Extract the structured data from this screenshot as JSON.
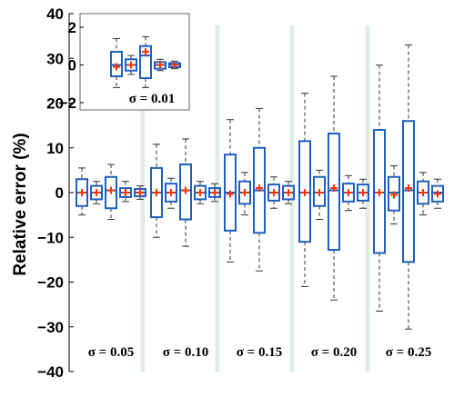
{
  "chart_data": [
    {
      "type": "boxplot",
      "ylabel": "Relative error (%)",
      "ylim": [
        -40,
        40
      ],
      "yticks": [
        "40",
        "30",
        "20",
        "10",
        "0",
        "−10",
        "−20",
        "−30",
        "−40"
      ],
      "ytick_values": [
        40,
        30,
        20,
        10,
        0,
        -10,
        -20,
        -30,
        -40
      ],
      "separator_color": "#dfeee4",
      "box_color": "#1f5fbf",
      "mean_color": "#ff3300",
      "whisker_style": "dashed",
      "groups": [
        {
          "label": "σ = 0.05",
          "boxes": [
            {
              "wl": -5.0,
              "q1": -3.0,
              "med": 0.0,
              "q3": 3.0,
              "wh": 5.5,
              "mean": 0.0
            },
            {
              "wl": -2.5,
              "q1": -1.5,
              "med": 0.0,
              "q3": 1.5,
              "wh": 2.5,
              "mean": 0.0
            },
            {
              "wl": -6.0,
              "q1": -3.5,
              "med": 0.5,
              "q3": 3.5,
              "wh": 6.3,
              "mean": 0.5
            },
            {
              "wl": -2.0,
              "q1": -1.0,
              "med": 0.0,
              "q3": 1.0,
              "wh": 2.5,
              "mean": 0.0
            },
            {
              "wl": -1.5,
              "q1": -0.8,
              "med": 0.0,
              "q3": 0.8,
              "wh": 1.5,
              "mean": 0.0
            }
          ]
        },
        {
          "label": "σ = 0.10",
          "boxes": [
            {
              "wl": -10.0,
              "q1": -5.5,
              "med": 0.0,
              "q3": 5.5,
              "wh": 10.8,
              "mean": 0.0
            },
            {
              "wl": -3.5,
              "q1": -2.0,
              "med": 0.0,
              "q3": 2.0,
              "wh": 3.2,
              "mean": 0.0
            },
            {
              "wl": -12.0,
              "q1": -6.0,
              "med": 0.5,
              "q3": 6.3,
              "wh": 12.0,
              "mean": 0.5
            },
            {
              "wl": -2.5,
              "q1": -1.5,
              "med": 0.0,
              "q3": 1.5,
              "wh": 2.5,
              "mean": 0.0
            },
            {
              "wl": -2.0,
              "q1": -1.0,
              "med": 0.0,
              "q3": 1.0,
              "wh": 2.0,
              "mean": 0.0
            }
          ]
        },
        {
          "label": "σ = 0.15",
          "boxes": [
            {
              "wl": -15.5,
              "q1": -8.5,
              "med": 0.0,
              "q3": 8.5,
              "wh": 16.3,
              "mean": -0.3
            },
            {
              "wl": -5.0,
              "q1": -2.5,
              "med": 0.0,
              "q3": 2.5,
              "wh": 4.5,
              "mean": 0.0
            },
            {
              "wl": -17.5,
              "q1": -9.0,
              "med": 0.5,
              "q3": 10.0,
              "wh": 18.8,
              "mean": 1.0
            },
            {
              "wl": -3.5,
              "q1": -1.8,
              "med": 0.0,
              "q3": 1.8,
              "wh": 3.5,
              "mean": 0.0
            },
            {
              "wl": -2.5,
              "q1": -1.5,
              "med": 0.0,
              "q3": 1.5,
              "wh": 2.5,
              "mean": 0.0
            }
          ]
        },
        {
          "label": "σ = 0.20",
          "boxes": [
            {
              "wl": -21.0,
              "q1": -11.0,
              "med": 0.0,
              "q3": 11.5,
              "wh": 22.2,
              "mean": 0.0
            },
            {
              "wl": -6.0,
              "q1": -3.0,
              "med": 0.0,
              "q3": 3.5,
              "wh": 5.0,
              "mean": 0.0
            },
            {
              "wl": -24.0,
              "q1": -12.8,
              "med": 0.5,
              "q3": 13.2,
              "wh": 26.0,
              "mean": 1.0
            },
            {
              "wl": -4.0,
              "q1": -2.0,
              "med": 0.0,
              "q3": 2.0,
              "wh": 3.8,
              "mean": 0.0
            },
            {
              "wl": -3.5,
              "q1": -1.8,
              "med": 0.0,
              "q3": 1.8,
              "wh": 3.0,
              "mean": 0.0
            }
          ]
        },
        {
          "label": "σ = 0.25",
          "boxes": [
            {
              "wl": -26.5,
              "q1": -13.5,
              "med": 0.0,
              "q3": 14.0,
              "wh": 28.5,
              "mean": 0.0
            },
            {
              "wl": -7.0,
              "q1": -4.0,
              "med": 0.0,
              "q3": 3.5,
              "wh": 6.0,
              "mean": -0.5
            },
            {
              "wl": -30.5,
              "q1": -15.5,
              "med": 0.5,
              "q3": 16.0,
              "wh": 33.0,
              "mean": 1.0
            },
            {
              "wl": -5.0,
              "q1": -2.5,
              "med": 0.0,
              "q3": 2.5,
              "wh": 4.5,
              "mean": 0.0
            },
            {
              "wl": -3.5,
              "q1": -2.0,
              "med": 0.0,
              "q3": 1.5,
              "wh": 3.0,
              "mean": -0.3
            }
          ]
        }
      ]
    },
    {
      "type": "boxplot",
      "inset": true,
      "ylim": [
        -2,
        2
      ],
      "yticks": [
        "2",
        "0",
        "−2"
      ],
      "ytick_values": [
        2,
        0,
        -2
      ],
      "group_label": "σ = 0.01",
      "boxes": [
        {
          "wl": -1.2,
          "q1": -0.6,
          "med": 0.0,
          "q3": 0.7,
          "wh": 1.4,
          "mean": -0.1
        },
        {
          "wl": -0.5,
          "q1": -0.3,
          "med": 0.0,
          "q3": 0.3,
          "wh": 0.5,
          "mean": 0.0
        },
        {
          "wl": -1.2,
          "q1": -0.7,
          "med": 0.5,
          "q3": 1.0,
          "wh": 1.5,
          "mean": 0.7
        },
        {
          "wl": -0.3,
          "q1": -0.2,
          "med": 0.0,
          "q3": 0.15,
          "wh": 0.3,
          "mean": 0.0
        },
        {
          "wl": -0.2,
          "q1": -0.12,
          "med": 0.0,
          "q3": 0.1,
          "wh": 0.2,
          "mean": 0.0
        }
      ]
    }
  ]
}
